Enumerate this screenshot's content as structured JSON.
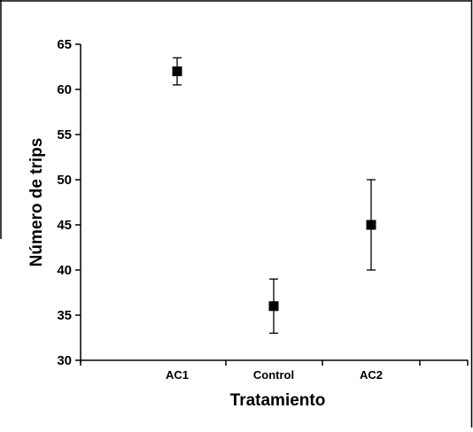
{
  "chart_data": {
    "type": "scatter",
    "xlabel": "Tratamiento",
    "ylabel": "Número de trips",
    "categories": [
      "AC1",
      "Control",
      "AC2"
    ],
    "series": [
      {
        "values": [
          62,
          36,
          45
        ],
        "error_low": [
          60.5,
          33,
          40
        ],
        "error_high": [
          63.5,
          39,
          50
        ]
      }
    ],
    "ylim": [
      30,
      65
    ],
    "yticks": [
      30,
      35,
      40,
      45,
      50,
      55,
      60,
      65
    ],
    "grid": false,
    "legend": "none",
    "marker": "square",
    "colors": {
      "marker": "#000000",
      "axis": "#000000",
      "frame": "#000000"
    }
  }
}
